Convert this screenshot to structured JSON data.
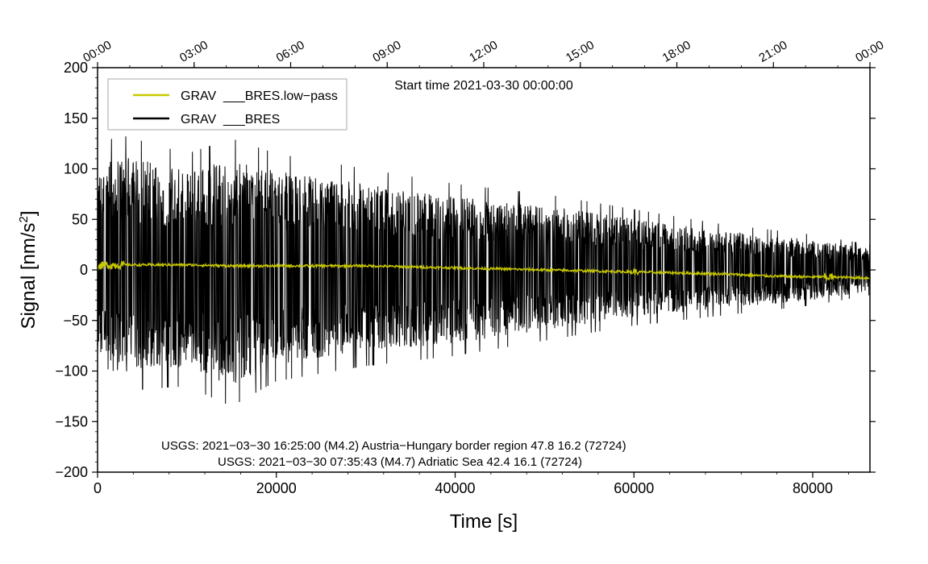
{
  "chart_data": {
    "type": "line",
    "xlabel": "Time [s]",
    "ylabel_main": "Signal [nm/s",
    "ylabel_sup": "2",
    "ylabel_tail": "]",
    "xlim": [
      0,
      86400
    ],
    "ylim": [
      -200,
      200
    ],
    "x_ticks": [
      0,
      20000,
      40000,
      60000,
      80000
    ],
    "x_tick_labels": [
      "0",
      "20000",
      "40000",
      "60000",
      "80000"
    ],
    "y_ticks": [
      -200,
      -150,
      -100,
      -50,
      0,
      50,
      100,
      150,
      200
    ],
    "y_tick_labels": [
      "−200",
      "−150",
      "−100",
      "−50",
      "0",
      "50",
      "100",
      "150",
      "200"
    ],
    "top_axis_ticks": [
      0,
      10800,
      21600,
      32400,
      43200,
      54000,
      64800,
      75600,
      86400
    ],
    "top_axis_labels": [
      "00:00",
      "03:00",
      "06:00",
      "09:00",
      "12:00",
      "15:00",
      "18:00",
      "21:00",
      "00:00"
    ],
    "annotation": "Start time 2021-03-30 00:00:00",
    "legend_position": "top-left",
    "grid": false,
    "series": [
      {
        "name": "GRAV  ___BRES.low−pass",
        "color": "#c8c800",
        "x": [
          0,
          2000,
          5000,
          10000,
          15000,
          20000,
          25000,
          30000,
          35000,
          40000,
          45000,
          50000,
          55000,
          60000,
          65000,
          70000,
          75000,
          80000,
          82000,
          86400
        ],
        "y": [
          4,
          5,
          5,
          5,
          4,
          4,
          4,
          4,
          3,
          2,
          1,
          0,
          -1,
          -2,
          -3,
          -4,
          -6,
          -7,
          -7,
          -8
        ]
      },
      {
        "name": "GRAV  ___BRES",
        "color": "#000000",
        "x": [
          0,
          2000,
          10000,
          15000,
          20000,
          30000,
          40000,
          50000,
          60000,
          70000,
          80000,
          86400
        ],
        "y_max": [
          110,
          135,
          115,
          130,
          115,
          100,
          85,
          75,
          60,
          45,
          35,
          25
        ],
        "y_min": [
          -110,
          -120,
          -115,
          -135,
          -110,
          -95,
          -85,
          -70,
          -55,
          -45,
          -35,
          -25
        ]
      }
    ],
    "notes": [
      "USGS: 2021−03−30 16:25:00 (M4.2) Austria−Hungary border region 47.8 16.2 (72724)",
      "USGS: 2021−03−30 07:35:43 (M4.7) Adriatic Sea 42.4 16.1 (72724)"
    ]
  }
}
